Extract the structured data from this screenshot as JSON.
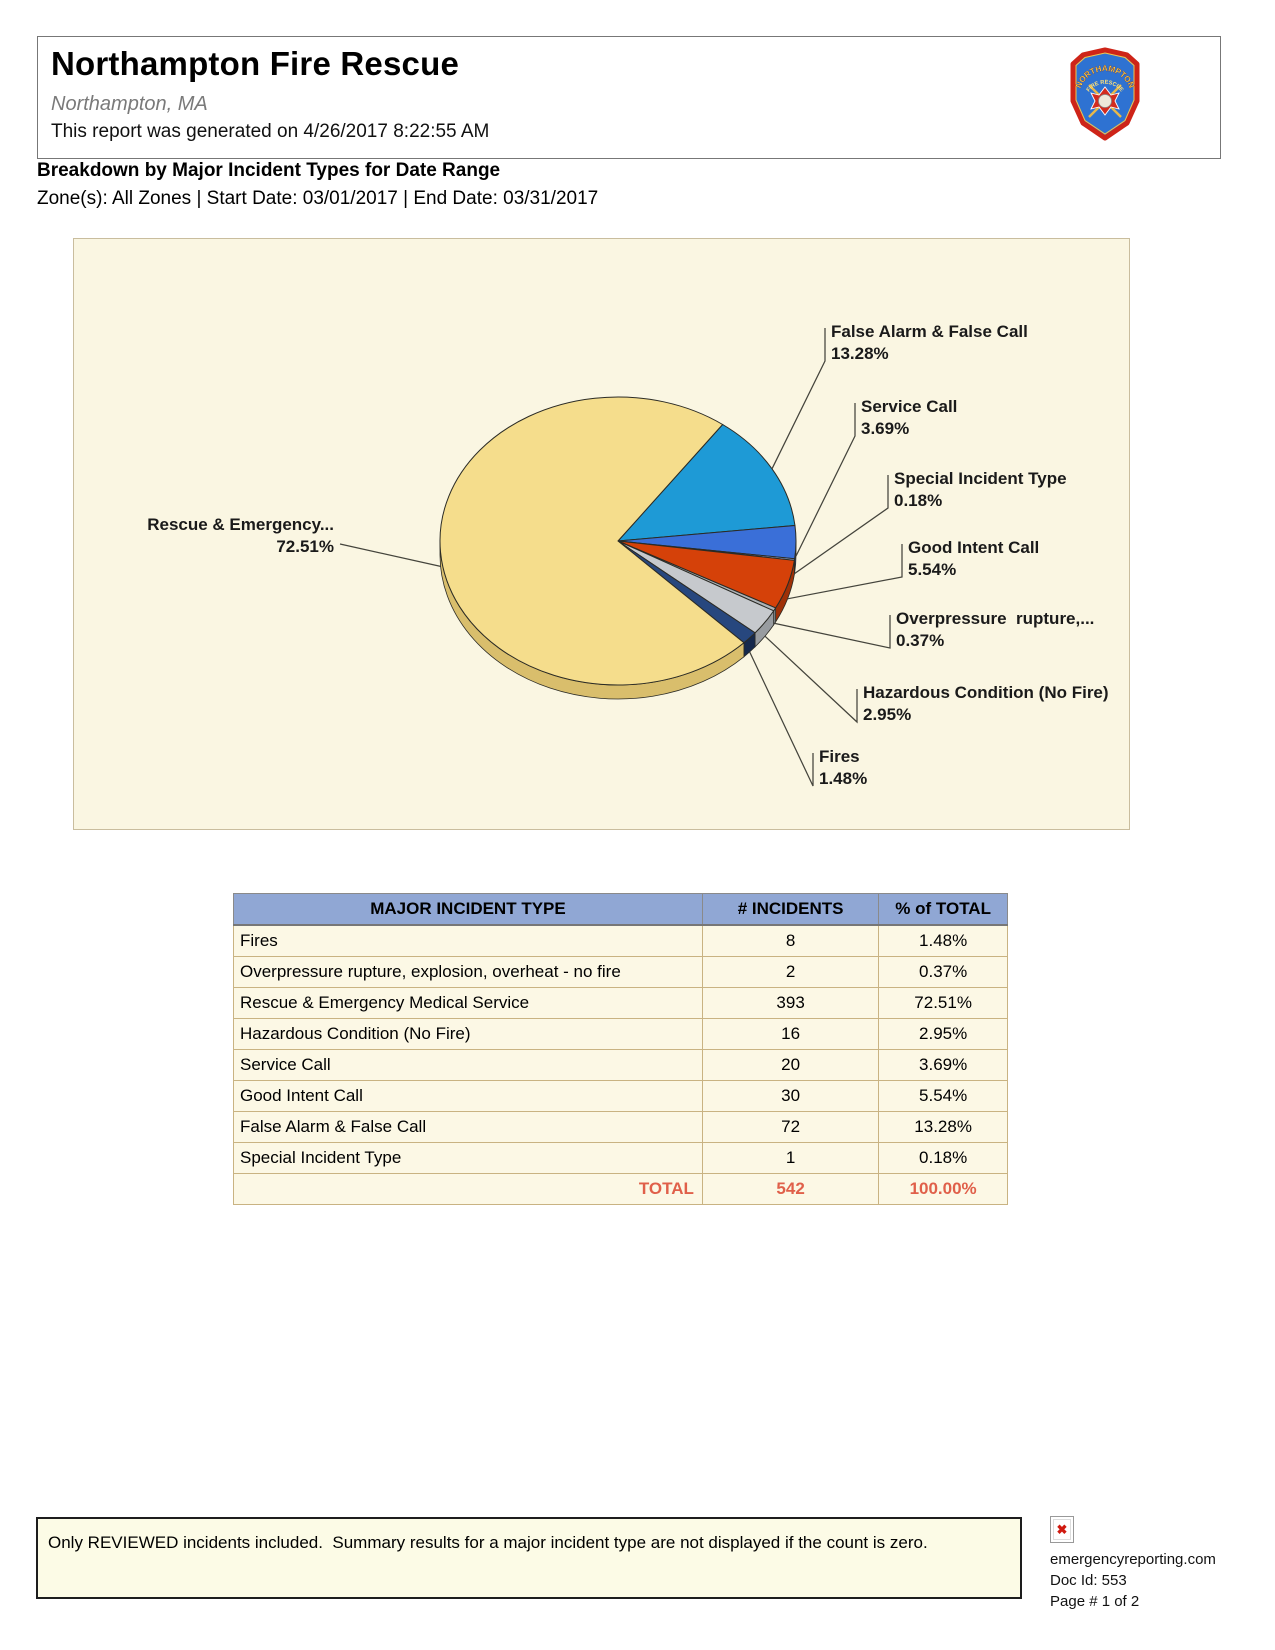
{
  "header": {
    "department": "Northampton Fire Rescue",
    "location": "Northampton, MA",
    "generated": "This report was generated on 4/26/2017 8:22:55 AM",
    "report_title": "Breakdown by Major Incident Types for Date Range",
    "filters": "Zone(s): All Zones | Start Date: 03/01/2017 | End Date: 03/31/2017",
    "logo": {
      "arc_top": "NORTHAMPTON",
      "arc_bottom": "FIRE RESCUE"
    }
  },
  "chart_data": {
    "type": "pie",
    "title": "Breakdown by Major Incident Types for Date Range",
    "start_angle_deg": 36,
    "legend_position": "callouts",
    "slices": [
      {
        "label": "False Alarm & False Call",
        "pct": 13.28,
        "count": 72,
        "color": "#1E9AD6",
        "side": "#14699A"
      },
      {
        "label": "Service Call",
        "pct": 3.69,
        "count": 20,
        "color": "#3A6FD8",
        "side": "#2A52A8"
      },
      {
        "label": "Special Incident Type",
        "pct": 0.18,
        "count": 1,
        "color": "#8FA8D8",
        "side": "#6A82B0"
      },
      {
        "label": "Good Intent Call",
        "pct": 5.54,
        "count": 30,
        "color": "#D54109",
        "side": "#9E3007"
      },
      {
        "label": "Overpressure  rupture,...",
        "pct": 0.37,
        "count": 2,
        "color": "#AEB2B6",
        "side": "#83878B"
      },
      {
        "label": "Hazardous Condition (No Fire)",
        "pct": 2.95,
        "count": 16,
        "color": "#C6C9CD",
        "side": "#989CA0"
      },
      {
        "label": "Fires",
        "pct": 1.48,
        "count": 8,
        "color": "#27477E",
        "side": "#16294C"
      },
      {
        "label": "Rescue & Emergency...",
        "pct": 72.51,
        "count": 393,
        "color": "#F5DD8C",
        "side": "#D9BE6C"
      }
    ]
  },
  "table": {
    "headers": [
      "MAJOR INCIDENT TYPE",
      "# INCIDENTS",
      "% of TOTAL"
    ],
    "rows": [
      {
        "type": "Fires",
        "count": "8",
        "pct": "1.48%"
      },
      {
        "type": "Overpressure rupture, explosion, overheat - no fire",
        "count": "2",
        "pct": "0.37%"
      },
      {
        "type": "Rescue & Emergency Medical Service",
        "count": "393",
        "pct": "72.51%"
      },
      {
        "type": "Hazardous Condition (No Fire)",
        "count": "16",
        "pct": "2.95%"
      },
      {
        "type": "Service Call",
        "count": "20",
        "pct": "3.69%"
      },
      {
        "type": "Good Intent Call",
        "count": "30",
        "pct": "5.54%"
      },
      {
        "type": "False Alarm & False Call",
        "count": "72",
        "pct": "13.28%"
      },
      {
        "type": "Special Incident Type",
        "count": "1",
        "pct": "0.18%"
      }
    ],
    "total": {
      "label": "TOTAL",
      "count": "542",
      "pct": "100.00%"
    }
  },
  "footer": {
    "note": "Only REVIEWED incidents included.  Summary results for a major incident type are not displayed if the count is zero.",
    "broken_image_glyph": "✖",
    "source": "emergencyreporting.com",
    "doc_id": "Doc Id: 553",
    "page": "Page # 1 of 2"
  }
}
